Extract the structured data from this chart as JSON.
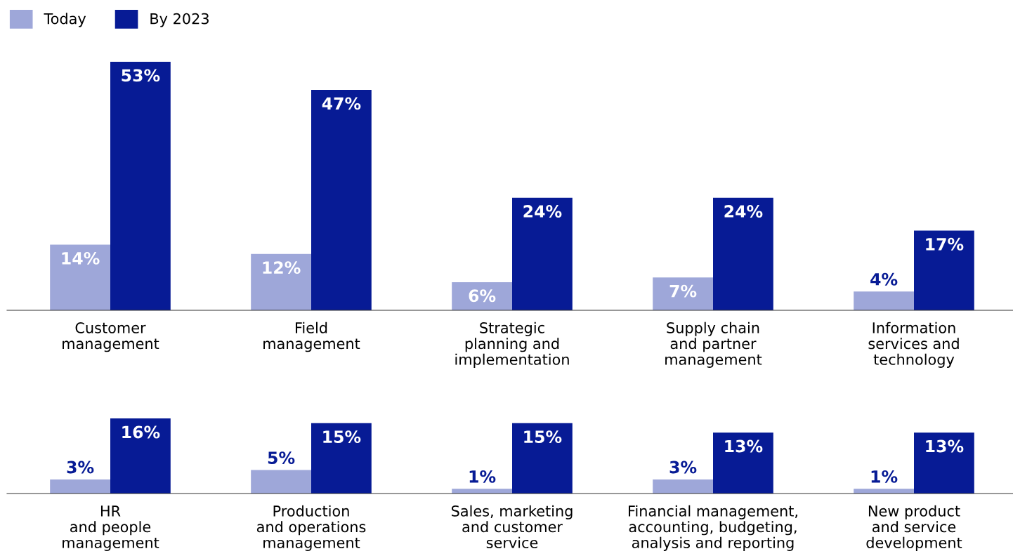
{
  "chart_data": [
    {
      "type": "bar",
      "categories": [
        "Customer\nmanagement",
        "Field\nmanagement",
        "Strategic\nplanning and\nimplementation",
        "Supply chain\nand partner\nmanagement",
        "Information\nservices and\ntechnology"
      ],
      "series": [
        {
          "name": "Today",
          "color": "#9ea7d9",
          "values": [
            14,
            12,
            6,
            7,
            4
          ],
          "value_labels": [
            "14%",
            "12%",
            "6%",
            "7%",
            "4%"
          ]
        },
        {
          "name": "By 2023",
          "color": "#071b95",
          "values": [
            53,
            47,
            24,
            24,
            17
          ],
          "value_labels": [
            "53%",
            "47%",
            "24%",
            "24%",
            "17%"
          ]
        }
      ],
      "tick_labels": "x",
      "legend": "top left",
      "grid": false
    },
    {
      "type": "bar",
      "categories": [
        "HR\nand people\nmanagement",
        "Production\nand operations\nmanagement",
        "Sales, marketing\nand customer\nservice",
        "Financial management,\naccounting, budgeting,\nanalysis and reporting",
        "New product\nand service\ndevelopment"
      ],
      "series": [
        {
          "color": "#9ea7d9",
          "values": [
            3,
            5,
            1,
            3,
            1
          ],
          "value_labels": [
            "3%",
            "5%",
            "1%",
            "3%",
            "1%"
          ]
        },
        {
          "color": "#071b95",
          "values": [
            16,
            15,
            15,
            13,
            13
          ],
          "value_labels": [
            "16%",
            "15%",
            "15%",
            "13%",
            "13%"
          ]
        }
      ],
      "tick_labels": "x",
      "grid": false
    }
  ]
}
